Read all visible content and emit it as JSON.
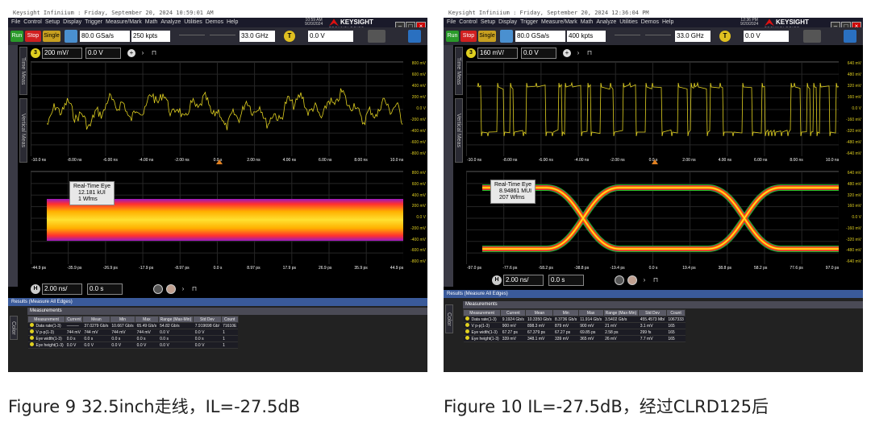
{
  "left": {
    "header_text": "Keysight Infiniium : Friday, September 20, 2024 10:59:01 AM",
    "menu": [
      "File",
      "Control",
      "Setup",
      "Display",
      "Trigger",
      "Measure/Mark",
      "Math",
      "Analyze",
      "Utilities",
      "Demos",
      "Help"
    ],
    "time": "10:59 AM",
    "date": "9/20/2024",
    "logo": "KEYSIGHT",
    "logo_sub": "TECHNOLOGIES",
    "run_label": "Run",
    "stop_label": "Stop",
    "single_label": "Single",
    "sample_rate": "80.0 GSa/s",
    "memory_depth": "250 kpts",
    "bandwidth": "33.0 GHz",
    "trigger_badge": "T",
    "trigger_level": "0.0 V",
    "side_tabs": [
      "Time Meas",
      "Vertical Meas"
    ],
    "channel_badge": "3",
    "channel_scale": "200 mV/",
    "channel_offset": "0.0 V",
    "top_yticks": [
      "800 mV",
      "600 mV",
      "400 mV",
      "200 mV",
      "0.0 V",
      "-200 mV",
      "-400 mV",
      "-600 mV",
      "-800 mV"
    ],
    "top_xticks": [
      "-10.0 ns",
      "-8.00 ns",
      "-6.00 ns",
      "-4.00 ns",
      "-2.00 ns",
      "0.0 s",
      "2.00 ns",
      "4.00 ns",
      "6.00 ns",
      "8.00 ns",
      "10.0 ns"
    ],
    "eye_title": "Real-Time Eye",
    "eye_ui": "12.181 kUI",
    "eye_wfms": "1 Wfms",
    "eye_yticks": [
      "800 mV",
      "600 mV",
      "400 mV",
      "200 mV",
      "0.0 V",
      "-200 mV",
      "-400 mV",
      "-600 mV",
      "-800 mV"
    ],
    "eye_xticks": [
      "-44.9 ps",
      "-35.9 ps",
      "-26.9 ps",
      "-17.9 ps",
      "-8.97 ps",
      "0.0 s",
      "8.97 ps",
      "17.9 ps",
      "26.9 ps",
      "35.9 ps",
      "44.9 ps"
    ],
    "h_badge": "H",
    "h_scale": "2.00 ns/",
    "h_position": "0.0 s",
    "results_title": "Results  (Measure All Edges)",
    "meas_title": "Measurements",
    "columns": [
      "Measurement",
      "Current",
      "Mean",
      "Min",
      "Max",
      "Range (Max-Min)",
      "Std Dev",
      "Count"
    ],
    "rows": [
      [
        "Data rate(1-3)",
        "———",
        "37.0279 Gb/s",
        "10.667 Gb/s",
        "65.49 Gb/s",
        "54.82 Gb/s",
        "7.919698 Gb/",
        "71610E"
      ],
      [
        "V p-p(1-3)",
        "744 mV",
        "744 mV",
        "744 mV",
        "744 mV",
        "0.0 V",
        "0.0 V",
        "1"
      ],
      [
        "Eye width(1-3)",
        "0.0 s",
        "0.0 s",
        "0.0 s",
        "0.0 s",
        "0.0 s",
        "0.0 s",
        "1"
      ],
      [
        "Eye height(1-3)",
        "0.0 V",
        "0.0 V",
        "0.0 V",
        "0.0 V",
        "0.0 V",
        "0.0 V",
        "1"
      ]
    ],
    "caption": "Figure 9 32.5inch走线，IL=-27.5dB"
  },
  "right": {
    "header_text": "Keysight Infiniium : Friday, September 20, 2024 12:36:04 PM",
    "menu": [
      "File",
      "Control",
      "Setup",
      "Display",
      "Trigger",
      "Measure/Mark",
      "Math",
      "Analyze",
      "Utilities",
      "Demos",
      "Help"
    ],
    "time": "12:36 PM",
    "date": "9/20/2024",
    "logo": "KEYSIGHT",
    "logo_sub": "TECHNOLOGIES",
    "run_label": "Run",
    "stop_label": "Stop",
    "single_label": "Single",
    "sample_rate": "80.0 GSa/s",
    "memory_depth": "400 kpts",
    "bandwidth": "33.0 GHz",
    "trigger_badge": "T",
    "trigger_level": "0.0 V",
    "side_tabs": [
      "Time Meas",
      "Vertical Meas"
    ],
    "channel_badge": "3",
    "channel_scale": "160 mV/",
    "channel_offset": "0.0 V",
    "top_yticks": [
      "640 mV",
      "480 mV",
      "320 mV",
      "160 mV",
      "0.0 V",
      "-160 mV",
      "-320 mV",
      "-480 mV",
      "-640 mV"
    ],
    "top_xticks": [
      "-10.0 ns",
      "-8.00 ns",
      "-6.00 ns",
      "-4.00 ns",
      "-2.00 ns",
      "0.0 s",
      "2.00 ns",
      "4.00 ns",
      "6.00 ns",
      "8.00 ns",
      "10.0 ns"
    ],
    "eye_title": "Real-Time Eye",
    "eye_ui": "8.94861 MUI",
    "eye_wfms": "207 Wfms",
    "eye_yticks": [
      "640 mV",
      "480 mV",
      "320 mV",
      "160 mV",
      "0.0 V",
      "-160 mV",
      "-320 mV",
      "-480 mV",
      "-640 mV"
    ],
    "eye_xticks": [
      "-97.0 ps",
      "-77.6 ps",
      "-58.2 ps",
      "-38.8 ps",
      "-19.4 ps",
      "0.0 s",
      "19.4 ps",
      "38.8 ps",
      "58.2 ps",
      "77.6 ps",
      "97.0 ps"
    ],
    "h_badge": "H",
    "h_scale": "2.00 ns/",
    "h_position": "0.0 s",
    "results_title": "Results  (Measure All Edges)",
    "meas_title": "Measurements",
    "columns": [
      "Measurement",
      "Current",
      "Mean",
      "Min",
      "Max",
      "Range (Max-Min)",
      "Std Dev",
      "Count"
    ],
    "rows": [
      [
        "Data rate(1-3)",
        "9.1924 Gb/s",
        "10.3350 Gb/s",
        "8.3736 Gb/s",
        "11.914 Gb/s",
        "3.5402 Gb/s",
        "455.4573 Mb/",
        "1067333"
      ],
      [
        "V p-p(1-3)",
        "900 mV",
        "898.3 mV",
        "879 mV",
        "900 mV",
        "21 mV",
        "3.1 mV",
        "165"
      ],
      [
        "Eye width(1-3)",
        "67.27 ps",
        "67.379 ps",
        "67.27 ps",
        "69.85 ps",
        "2.58 ps",
        "299 fs",
        "165"
      ],
      [
        "Eye height(1-3)",
        "339 mV",
        "348.1 mV",
        "339 mV",
        "365 mV",
        "26 mV",
        "7.7 mV",
        "165"
      ]
    ],
    "caption": "Figure 10 IL=-27.5dB，经过CLRD125后"
  },
  "colors": {
    "trace": "#e0d020",
    "eye_hot": "#ffd000",
    "eye_mid": "#ff6000",
    "eye_cool": "#a020a0",
    "eye_edge": "#20c020"
  }
}
